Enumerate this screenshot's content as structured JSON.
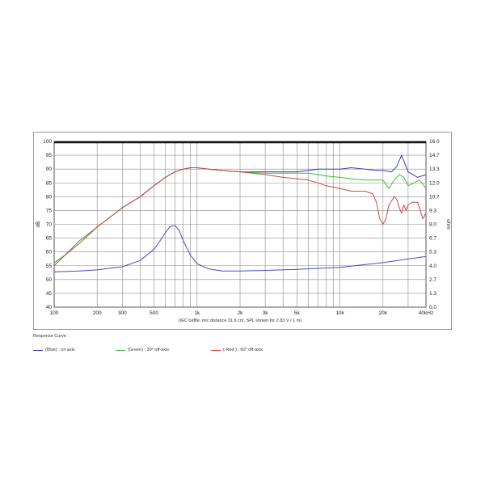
{
  "chart_data": {
    "type": "line",
    "x_scale": "log",
    "xlim": [
      100,
      40000
    ],
    "ylim_left": [
      40,
      100
    ],
    "ylim_right": [
      0,
      16
    ],
    "ylabel_left": "dB",
    "ylabel_right": "ohm",
    "xlabel": "(IEC baffle, mic.distance 31.6 cm, SPL shown for 2.83 V / 1 m)",
    "x_ticks": [
      {
        "value": 100,
        "label": "100"
      },
      {
        "value": 200,
        "label": "200"
      },
      {
        "value": 300,
        "label": "300"
      },
      {
        "value": 500,
        "label": "500"
      },
      {
        "value": 1000,
        "label": "1k"
      },
      {
        "value": 2000,
        "label": "2k"
      },
      {
        "value": 3000,
        "label": "3k"
      },
      {
        "value": 5000,
        "label": "5k"
      },
      {
        "value": 10000,
        "label": "10k"
      },
      {
        "value": 20000,
        "label": "20k"
      },
      {
        "value": 40000,
        "label": "40kHz"
      }
    ],
    "y_ticks_left": [
      "40",
      "45",
      "50",
      "55",
      "60",
      "65",
      "70",
      "75",
      "80",
      "85",
      "90",
      "95",
      "100"
    ],
    "y_ticks_right": [
      "0.0",
      "1.3",
      "2.7",
      "4.0",
      "5.3",
      "6.7",
      "8.0",
      "9.3",
      "10.7",
      "12.0",
      "13.3",
      "14.7",
      "16.0"
    ],
    "grid": true,
    "series": [
      {
        "name": "(Blue) : on axis",
        "axis": "left",
        "color": "#3a3ab8",
        "x": [
          100,
          120,
          150,
          200,
          300,
          400,
          500,
          600,
          700,
          800,
          900,
          1000,
          1200,
          1500,
          2000,
          3000,
          4000,
          5000,
          6000,
          7000,
          8000,
          10000,
          12000,
          15000,
          18000,
          20000,
          23000,
          25000,
          27000,
          30000,
          35000,
          40000
        ],
        "y": [
          56,
          59,
          64,
          69,
          76,
          80,
          84,
          87,
          89,
          90,
          90.5,
          90.5,
          90,
          89.5,
          89,
          89,
          89,
          89,
          89.5,
          90,
          90,
          90,
          90.5,
          90,
          89.5,
          89.5,
          89,
          91,
          95,
          89,
          87,
          88
        ]
      },
      {
        "name": "(Green) : 30° off-axis",
        "axis": "left",
        "color": "#3cbf3c",
        "x": [
          100,
          120,
          150,
          200,
          300,
          400,
          500,
          600,
          700,
          800,
          900,
          1000,
          1200,
          1500,
          2000,
          3000,
          4000,
          5000,
          6000,
          7000,
          8000,
          10000,
          12000,
          15000,
          18000,
          20000,
          22000,
          24000,
          26000,
          28000,
          30000,
          33000,
          36000,
          40000
        ],
        "y": [
          56,
          59,
          64,
          69,
          76,
          80,
          84,
          87,
          89,
          90,
          90.5,
          90.5,
          90,
          89.5,
          89,
          88.5,
          88.5,
          88.5,
          88.5,
          88,
          87.5,
          87,
          86.5,
          86,
          86,
          86,
          83,
          86,
          88,
          87,
          84,
          85,
          86,
          83
        ]
      },
      {
        "name": "( Red ) : 60° off-axis",
        "axis": "left",
        "color": "#d04848",
        "x": [
          100,
          120,
          150,
          200,
          300,
          400,
          500,
          600,
          700,
          800,
          900,
          1000,
          1200,
          1500,
          2000,
          3000,
          4000,
          5000,
          6000,
          7000,
          8000,
          10000,
          12000,
          15000,
          17000,
          18000,
          19000,
          20000,
          21000,
          22000,
          24000,
          25000,
          26000,
          27000,
          28000,
          29000,
          30000,
          32000,
          35000,
          38000,
          40000
        ],
        "y": [
          55,
          59,
          63,
          69,
          76,
          80,
          84,
          87,
          89,
          90,
          90.5,
          90.5,
          90,
          89.5,
          89,
          88,
          87,
          86.5,
          86,
          85,
          84,
          83,
          82,
          82,
          81,
          78,
          72,
          70,
          72,
          77,
          80,
          79,
          76,
          74,
          77,
          75,
          77,
          78,
          78,
          72,
          74
        ]
      },
      {
        "name": "impedance",
        "axis": "right",
        "color": "#4a4ac8",
        "x": [
          100,
          150,
          200,
          300,
          400,
          500,
          550,
          600,
          650,
          700,
          750,
          800,
          900,
          1000,
          1200,
          1500,
          2000,
          3000,
          5000,
          10000,
          20000,
          40000
        ],
        "y": [
          3.4,
          3.5,
          3.6,
          3.9,
          4.5,
          5.6,
          6.4,
          7.2,
          7.8,
          7.9,
          7.4,
          6.4,
          5.0,
          4.2,
          3.7,
          3.5,
          3.5,
          3.55,
          3.65,
          3.85,
          4.3,
          4.9
        ]
      }
    ]
  },
  "legend": {
    "title": "Response Curve :",
    "items": [
      {
        "label": "(Blue) : on axis",
        "color": "#3a3ab8"
      },
      {
        "label": "(Green) : 30° off-axis",
        "color": "#3cbf3c"
      },
      {
        "label": "( Red ) : 60° off-axis",
        "color": "#d04848"
      }
    ]
  }
}
